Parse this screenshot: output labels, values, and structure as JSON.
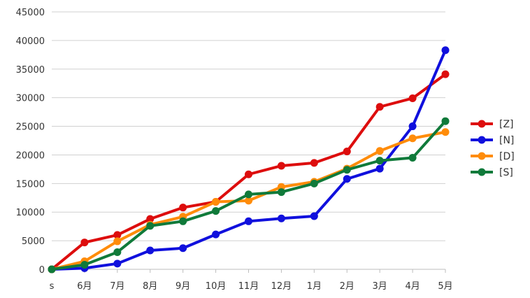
{
  "chart_data": {
    "type": "line",
    "title": "",
    "xlabel": "",
    "ylabel": "",
    "categories": [
      "s",
      "6月",
      "7月",
      "8月",
      "9月",
      "10月",
      "11月",
      "12月",
      "1月",
      "2月",
      "3月",
      "4月",
      "5月"
    ],
    "ylim": [
      0,
      45000
    ],
    "yticks": [
      "0",
      "5000",
      "10000",
      "15000",
      "20000",
      "25000",
      "30000",
      "35000",
      "40000",
      "45000"
    ],
    "grid": true,
    "legend_position": "right",
    "series": [
      {
        "name": "[Z]",
        "color": "#dd0d0d",
        "values": [
          0,
          4700,
          6000,
          8800,
          10800,
          11800,
          16600,
          18100,
          18600,
          20600,
          28400,
          29900,
          34100
        ]
      },
      {
        "name": "[N]",
        "color": "#1010dd",
        "values": [
          0,
          200,
          1000,
          3300,
          3700,
          6100,
          8400,
          8900,
          9300,
          15800,
          17600,
          25000,
          38300
        ]
      },
      {
        "name": "[D]",
        "color": "#ff8c0a",
        "values": [
          0,
          1400,
          4900,
          7800,
          9200,
          11800,
          12000,
          14400,
          15300,
          17600,
          20700,
          22900,
          24000
        ]
      },
      {
        "name": "[S]",
        "color": "#107a3a",
        "values": [
          0,
          800,
          3000,
          7600,
          8400,
          10200,
          13100,
          13500,
          15000,
          17400,
          19000,
          19500,
          25900
        ]
      }
    ]
  }
}
